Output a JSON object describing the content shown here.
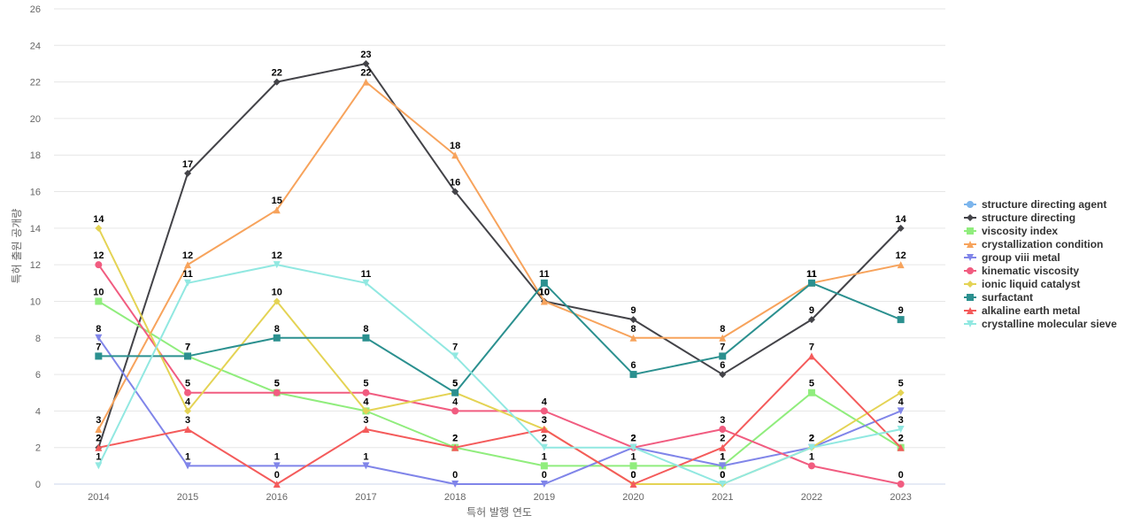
{
  "chart_data": {
    "type": "line",
    "xlabel": "특허 발행 연도",
    "ylabel": "특허 출원 공개량",
    "ylim": [
      0,
      26
    ],
    "yticks": [
      0,
      2,
      4,
      6,
      8,
      10,
      12,
      14,
      16,
      18,
      20,
      22,
      24,
      26
    ],
    "grid": true,
    "legend_position": "right",
    "categories": [
      "2014",
      "2015",
      "2016",
      "2017",
      "2018",
      "2019",
      "2020",
      "2021",
      "2022",
      "2023"
    ],
    "series": [
      {
        "name": "structure directing agent",
        "color": "#7cb5ec",
        "marker": "circle",
        "values": [
          null,
          null,
          null,
          null,
          null,
          null,
          null,
          null,
          null,
          null
        ]
      },
      {
        "name": "structure directing",
        "color": "#434348",
        "marker": "diamond",
        "values": [
          2,
          17,
          22,
          23,
          16,
          10,
          9,
          6,
          9,
          14
        ]
      },
      {
        "name": "viscosity index",
        "color": "#90ed7d",
        "marker": "square",
        "values": [
          10,
          7,
          5,
          4,
          2,
          1,
          1,
          1,
          5,
          2
        ]
      },
      {
        "name": "crystallization condition",
        "color": "#f7a35c",
        "marker": "triangle",
        "values": [
          3,
          12,
          15,
          22,
          18,
          10,
          8,
          8,
          11,
          12
        ]
      },
      {
        "name": "group viii metal",
        "color": "#8085e9",
        "marker": "triangle-down",
        "values": [
          8,
          1,
          1,
          1,
          0,
          0,
          2,
          1,
          2,
          4
        ]
      },
      {
        "name": "kinematic viscosity",
        "color": "#f15c80",
        "marker": "circle",
        "values": [
          12,
          5,
          5,
          5,
          4,
          4,
          2,
          3,
          1,
          0
        ]
      },
      {
        "name": "ionic liquid catalyst",
        "color": "#e4d354",
        "marker": "diamond",
        "values": [
          14,
          4,
          10,
          4,
          5,
          3,
          0,
          0,
          2,
          5
        ]
      },
      {
        "name": "surfactant",
        "color": "#2b908f",
        "marker": "square",
        "values": [
          7,
          7,
          8,
          8,
          5,
          11,
          6,
          7,
          11,
          9
        ]
      },
      {
        "name": "alkaline earth metal",
        "color": "#f45b5b",
        "marker": "triangle",
        "values": [
          2,
          3,
          0,
          3,
          2,
          3,
          0,
          2,
          7,
          2
        ]
      },
      {
        "name": "crystalline molecular sieve",
        "color": "#91e8e1",
        "marker": "triangle-down",
        "values": [
          1,
          11,
          12,
          11,
          7,
          2,
          2,
          0,
          2,
          3
        ]
      }
    ]
  }
}
